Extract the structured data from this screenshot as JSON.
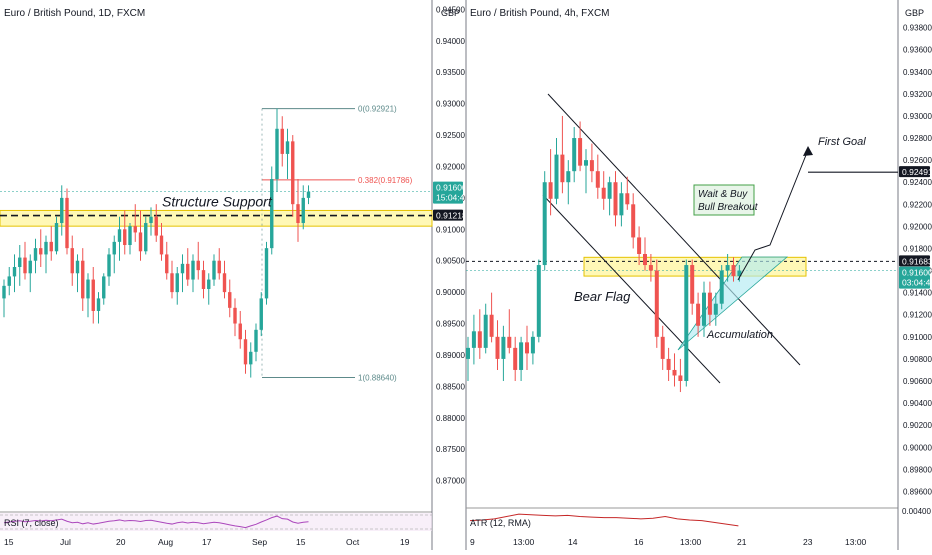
{
  "colors": {
    "up": "#26a69a",
    "down": "#ef5350",
    "zone_fill": "#fff59d",
    "zone_stroke": "#e6c200",
    "triangle_fill": "#b2ebf2",
    "annotation_bg": "#e8f5e9",
    "annotation_border": "#43a047",
    "badge_dark": "#131722",
    "badge_green": "#26a69a",
    "rsi_line": "#ab47bc",
    "atr_line": "#c62828"
  },
  "chart_data": [
    {
      "type": "candlestick",
      "title": "Euro / British Pound, 1D, FXCM",
      "currency": "GBP",
      "ylim": [
        0.865,
        0.9465
      ],
      "y_ticks": [
        "0.94500",
        "0.94000",
        "0.93500",
        "0.93000",
        "0.92500",
        "0.92000",
        "0.91500",
        "0.91000",
        "0.90500",
        "0.90000",
        "0.89500",
        "0.89000",
        "0.88500",
        "0.88000",
        "0.87500",
        "0.87000"
      ],
      "x_ticks": [
        "15",
        "Jul",
        "20",
        "Aug",
        "17",
        "Sep",
        "15",
        "Oct",
        "19"
      ],
      "last_price": "0.91600",
      "countdown": "15:04:42",
      "support_price": "0.91218",
      "structure_label": "Structure Support",
      "support_zone": [
        0.9105,
        0.913
      ],
      "fib_levels": [
        {
          "label": "0(0.92921)",
          "value": 0.92921
        },
        {
          "label": "0.382(0.91786)",
          "value": 0.91786
        },
        {
          "label": "1(0.88640)",
          "value": 0.8864
        }
      ],
      "indicator_label": "RSI (7, close)",
      "candles": [
        [
          0.899,
          0.902,
          0.896,
          0.901
        ],
        [
          0.901,
          0.904,
          0.8995,
          0.9025
        ],
        [
          0.9025,
          0.906,
          0.9,
          0.904
        ],
        [
          0.904,
          0.9075,
          0.901,
          0.9055
        ],
        [
          0.9055,
          0.908,
          0.902,
          0.903
        ],
        [
          0.903,
          0.906,
          0.9,
          0.905
        ],
        [
          0.905,
          0.9085,
          0.903,
          0.907
        ],
        [
          0.907,
          0.91,
          0.904,
          0.906
        ],
        [
          0.906,
          0.909,
          0.903,
          0.908
        ],
        [
          0.908,
          0.9105,
          0.905,
          0.9065
        ],
        [
          0.9065,
          0.912,
          0.906,
          0.911
        ],
        [
          0.911,
          0.917,
          0.909,
          0.915
        ],
        [
          0.915,
          0.9165,
          0.906,
          0.907
        ],
        [
          0.907,
          0.909,
          0.901,
          0.903
        ],
        [
          0.903,
          0.906,
          0.9,
          0.905
        ],
        [
          0.905,
          0.907,
          0.897,
          0.899
        ],
        [
          0.899,
          0.903,
          0.896,
          0.902
        ],
        [
          0.902,
          0.904,
          0.895,
          0.897
        ],
        [
          0.897,
          0.9,
          0.895,
          0.899
        ],
        [
          0.899,
          0.903,
          0.898,
          0.9025
        ],
        [
          0.9025,
          0.907,
          0.901,
          0.906
        ],
        [
          0.906,
          0.909,
          0.903,
          0.908
        ],
        [
          0.908,
          0.912,
          0.905,
          0.91
        ],
        [
          0.91,
          0.913,
          0.906,
          0.9075
        ],
        [
          0.9075,
          0.911,
          0.906,
          0.9105
        ],
        [
          0.9105,
          0.914,
          0.908,
          0.9095
        ],
        [
          0.9095,
          0.913,
          0.905,
          0.9065
        ],
        [
          0.9065,
          0.912,
          0.906,
          0.911
        ],
        [
          0.911,
          0.9135,
          0.909,
          0.912
        ],
        [
          0.912,
          0.914,
          0.908,
          0.909
        ],
        [
          0.909,
          0.911,
          0.905,
          0.906
        ],
        [
          0.906,
          0.908,
          0.902,
          0.903
        ],
        [
          0.903,
          0.905,
          0.899,
          0.9
        ],
        [
          0.9,
          0.904,
          0.898,
          0.903
        ],
        [
          0.903,
          0.906,
          0.9,
          0.9045
        ],
        [
          0.9045,
          0.907,
          0.901,
          0.902
        ],
        [
          0.902,
          0.906,
          0.9,
          0.905
        ],
        [
          0.905,
          0.908,
          0.902,
          0.9035
        ],
        [
          0.9035,
          0.905,
          0.899,
          0.9005
        ],
        [
          0.9005,
          0.903,
          0.898,
          0.902
        ],
        [
          0.902,
          0.906,
          0.901,
          0.905
        ],
        [
          0.905,
          0.907,
          0.902,
          0.903
        ],
        [
          0.903,
          0.905,
          0.899,
          0.9
        ],
        [
          0.9,
          0.902,
          0.896,
          0.8975
        ],
        [
          0.8975,
          0.899,
          0.893,
          0.895
        ],
        [
          0.895,
          0.897,
          0.891,
          0.8925
        ],
        [
          0.8925,
          0.894,
          0.887,
          0.8885
        ],
        [
          0.8885,
          0.892,
          0.8864,
          0.8905
        ],
        [
          0.8905,
          0.895,
          0.889,
          0.894
        ],
        [
          0.894,
          0.9,
          0.893,
          0.899
        ],
        [
          0.899,
          0.908,
          0.898,
          0.907
        ],
        [
          0.907,
          0.92,
          0.906,
          0.918
        ],
        [
          0.918,
          0.9292,
          0.916,
          0.926
        ],
        [
          0.926,
          0.928,
          0.92,
          0.922
        ],
        [
          0.922,
          0.926,
          0.918,
          0.924
        ],
        [
          0.924,
          0.925,
          0.912,
          0.914
        ],
        [
          0.914,
          0.918,
          0.908,
          0.911
        ],
        [
          0.911,
          0.917,
          0.91,
          0.915
        ],
        [
          0.915,
          0.917,
          0.914,
          0.916
        ]
      ],
      "rsi": [
        52,
        55,
        58,
        60,
        56,
        58,
        61,
        59,
        62,
        60,
        63,
        66,
        58,
        52,
        54,
        48,
        52,
        47,
        50,
        54,
        58,
        60,
        63,
        59,
        61,
        60,
        57,
        61,
        62,
        58,
        54,
        50,
        47,
        52,
        55,
        51,
        54,
        52,
        48,
        51,
        54,
        52,
        48,
        44,
        40,
        37,
        33,
        40,
        46,
        55,
        63,
        72,
        78,
        68,
        66,
        55,
        50,
        54,
        56
      ]
    },
    {
      "type": "candlestick",
      "title": "Euro / British Pound, 4h, FXCM",
      "currency": "GBP",
      "ylim": [
        0.8945,
        0.9405
      ],
      "y_ticks": [
        "0.93800",
        "0.93600",
        "0.93400",
        "0.93200",
        "0.93000",
        "0.92800",
        "0.92600",
        "0.92400",
        "0.92200",
        "0.92000",
        "0.91800",
        "0.91600",
        "0.91400",
        "0.91200",
        "0.91000",
        "0.90800",
        "0.90600",
        "0.90400",
        "0.90200",
        "0.90000",
        "0.89800",
        "0.89600"
      ],
      "x_ticks": [
        "9",
        "13:00",
        "14",
        "16",
        "13:00",
        "21",
        "23",
        "13:00"
      ],
      "last_price": "0.91600",
      "countdown": "03:04:42",
      "resistance_price": "0.91683",
      "goal_price": "0.92491",
      "zone": [
        0.9155,
        0.9172
      ],
      "labels": {
        "bear_flag": "Bear Flag",
        "accumulation": "Accumulation",
        "wait_line1": "Wait & Buy",
        "wait_line2": "Bull Breakout",
        "first_goal": "First Goal"
      },
      "indicator_label": "ATR (12, RMA)",
      "candles": [
        [
          0.908,
          0.91,
          0.906,
          0.909
        ],
        [
          0.909,
          0.912,
          0.9075,
          0.9105
        ],
        [
          0.9105,
          0.9125,
          0.908,
          0.909
        ],
        [
          0.909,
          0.913,
          0.9085,
          0.912
        ],
        [
          0.912,
          0.914,
          0.9095,
          0.91
        ],
        [
          0.91,
          0.9115,
          0.907,
          0.908
        ],
        [
          0.908,
          0.911,
          0.906,
          0.91
        ],
        [
          0.91,
          0.9125,
          0.9085,
          0.909
        ],
        [
          0.909,
          0.91,
          0.906,
          0.907
        ],
        [
          0.907,
          0.91,
          0.906,
          0.9095
        ],
        [
          0.9095,
          0.911,
          0.907,
          0.9085
        ],
        [
          0.9085,
          0.9105,
          0.9075,
          0.91
        ],
        [
          0.91,
          0.917,
          0.9095,
          0.9165
        ],
        [
          0.9165,
          0.925,
          0.916,
          0.924
        ],
        [
          0.924,
          0.927,
          0.921,
          0.9225
        ],
        [
          0.9225,
          0.928,
          0.922,
          0.9265
        ],
        [
          0.9265,
          0.93,
          0.923,
          0.924
        ],
        [
          0.924,
          0.926,
          0.922,
          0.925
        ],
        [
          0.925,
          0.929,
          0.924,
          0.928
        ],
        [
          0.928,
          0.9295,
          0.925,
          0.9255
        ],
        [
          0.9255,
          0.927,
          0.923,
          0.926
        ],
        [
          0.926,
          0.9275,
          0.924,
          0.925
        ],
        [
          0.925,
          0.9265,
          0.9225,
          0.9235
        ],
        [
          0.9235,
          0.925,
          0.9215,
          0.9225
        ],
        [
          0.9225,
          0.9245,
          0.921,
          0.924
        ],
        [
          0.924,
          0.925,
          0.92,
          0.921
        ],
        [
          0.921,
          0.924,
          0.92,
          0.923
        ],
        [
          0.923,
          0.9245,
          0.9215,
          0.922
        ],
        [
          0.922,
          0.923,
          0.918,
          0.919
        ],
        [
          0.919,
          0.92,
          0.9165,
          0.9175
        ],
        [
          0.9175,
          0.919,
          0.916,
          0.9165
        ],
        [
          0.9165,
          0.9175,
          0.915,
          0.916
        ],
        [
          0.916,
          0.917,
          0.909,
          0.91
        ],
        [
          0.91,
          0.911,
          0.907,
          0.908
        ],
        [
          0.908,
          0.909,
          0.906,
          0.907
        ],
        [
          0.907,
          0.9085,
          0.9055,
          0.9065
        ],
        [
          0.9065,
          0.908,
          0.905,
          0.906
        ],
        [
          0.906,
          0.917,
          0.9055,
          0.9165
        ],
        [
          0.9165,
          0.917,
          0.912,
          0.913
        ],
        [
          0.913,
          0.914,
          0.91,
          0.911
        ],
        [
          0.911,
          0.915,
          0.91,
          0.914
        ],
        [
          0.914,
          0.915,
          0.911,
          0.912
        ],
        [
          0.912,
          0.914,
          0.911,
          0.913
        ],
        [
          0.913,
          0.9165,
          0.9125,
          0.916
        ],
        [
          0.916,
          0.9175,
          0.915,
          0.9165
        ],
        [
          0.9165,
          0.9172,
          0.915,
          0.9155
        ],
        [
          0.9155,
          0.9165,
          0.915,
          0.916
        ]
      ],
      "atr": [
        0.00285,
        0.0029,
        0.003,
        0.0032,
        0.0034,
        0.00335,
        0.0033,
        0.00325,
        0.0033,
        0.0032,
        0.00315,
        0.0031,
        0.0031,
        0.00305,
        0.003,
        0.00305,
        0.0032,
        0.003,
        0.0029,
        0.00285,
        0.0027,
        0.00255,
        0.0024
      ]
    }
  ]
}
